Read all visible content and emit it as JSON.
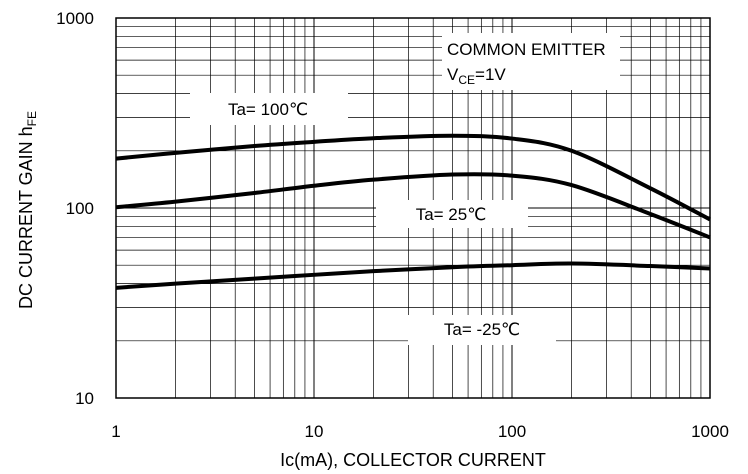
{
  "chart_data": {
    "type": "line",
    "x_scale": "log",
    "y_scale": "log",
    "xlim": [
      1,
      1000
    ],
    "ylim": [
      10,
      1000
    ],
    "xlabel": "Ic(mA), COLLECTOR CURRENT",
    "ylabel": {
      "main": "DC CURRENT GAIN h",
      "subscript": "FE"
    },
    "x_ticks": [
      "1",
      "10",
      "100",
      "1000"
    ],
    "y_ticks": [
      "10",
      "100",
      "1000"
    ],
    "x_tick_values": [
      1,
      10,
      100,
      1000
    ],
    "y_tick_values": [
      10,
      100,
      1000
    ],
    "grid": true,
    "annotation": {
      "line1": "COMMON EMITTER",
      "line2_prefix": "V",
      "line2_subscript": "CE",
      "line2_suffix": "=1V"
    },
    "series": [
      {
        "name": "Ta= 100℃",
        "x": [
          1,
          2,
          5,
          10,
          20,
          50,
          100,
          200,
          500,
          1000
        ],
        "y": [
          182,
          195,
          212,
          223,
          233,
          240,
          232,
          200,
          127,
          87
        ]
      },
      {
        "name": "Ta= 25℃",
        "x": [
          1,
          2,
          5,
          10,
          20,
          50,
          100,
          200,
          500,
          1000
        ],
        "y": [
          101,
          108,
          120,
          131,
          141,
          150,
          148,
          132,
          93,
          70
        ]
      },
      {
        "name": "Ta= -25℃",
        "x": [
          1,
          2,
          5,
          10,
          20,
          50,
          100,
          200,
          500,
          1000
        ],
        "y": [
          38,
          40,
          42.5,
          44.5,
          46.5,
          48.8,
          50,
          51,
          49.5,
          48
        ]
      }
    ]
  }
}
